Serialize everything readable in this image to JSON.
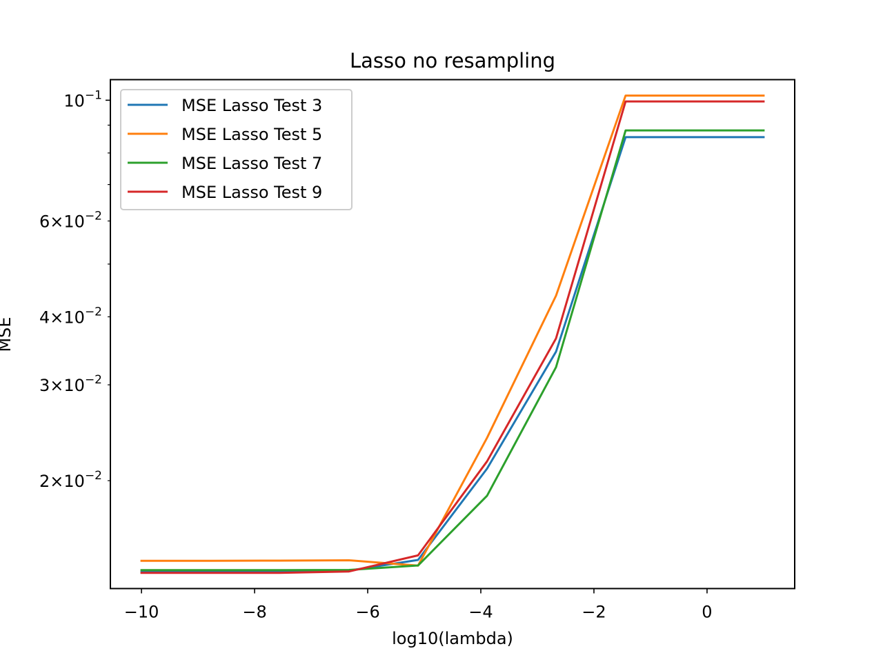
{
  "chart_data": {
    "type": "line",
    "title": "Lasso no resampling",
    "xlabel": "log10(lambda)",
    "ylabel": "MSE",
    "yscale": "log",
    "xlim": [
      -10.55,
      1.55
    ],
    "ylim": [
      0.01267,
      0.1091
    ],
    "grid": false,
    "legend_position": "upper-left",
    "x": [
      -10,
      -8.78,
      -7.56,
      -6.33,
      -5.11,
      -3.89,
      -2.67,
      -1.44,
      -0.22,
      1.0
    ],
    "x_ticks": [
      {
        "value": -10,
        "label": "−10"
      },
      {
        "value": -8,
        "label": "−8"
      },
      {
        "value": -6,
        "label": "−6"
      },
      {
        "value": -4,
        "label": "−4"
      },
      {
        "value": -2,
        "label": "−2"
      },
      {
        "value": 0,
        "label": "0"
      }
    ],
    "y_ticks_major": [
      {
        "value": 0.1,
        "base": "10",
        "exponent": "−1"
      }
    ],
    "y_ticks_minor_labeled": [
      {
        "value": 0.02,
        "mantissa": "2",
        "base": "10",
        "exponent": "−2"
      },
      {
        "value": 0.03,
        "mantissa": "3",
        "base": "10",
        "exponent": "−2"
      },
      {
        "value": 0.04,
        "mantissa": "4",
        "base": "10",
        "exponent": "−2"
      },
      {
        "value": 0.06,
        "mantissa": "6",
        "base": "10",
        "exponent": "−2"
      }
    ],
    "y_ticks_minor_unlabeled": [
      0.05,
      0.07,
      0.08,
      0.09
    ],
    "series": [
      {
        "name": "MSE Lasso Test 3",
        "color": "#1f77b4",
        "values": [
          0.01362,
          0.01362,
          0.01363,
          0.01367,
          0.0143,
          0.02104,
          0.03452,
          0.08555,
          0.08555,
          0.08555
        ]
      },
      {
        "name": "MSE Lasso Test 5",
        "color": "#ff7f0e",
        "values": [
          0.01425,
          0.01425,
          0.01426,
          0.01428,
          0.01396,
          0.02397,
          0.04375,
          0.102,
          0.102,
          0.102
        ]
      },
      {
        "name": "MSE Lasso Test 7",
        "color": "#2ca02c",
        "values": [
          0.0137,
          0.0137,
          0.0137,
          0.01371,
          0.01397,
          0.01876,
          0.03233,
          0.088,
          0.088,
          0.088
        ]
      },
      {
        "name": "MSE Lasso Test 9",
        "color": "#d62728",
        "values": [
          0.01354,
          0.01354,
          0.01354,
          0.01362,
          0.01458,
          0.0217,
          0.03651,
          0.0995,
          0.0995,
          0.0995
        ]
      }
    ]
  }
}
